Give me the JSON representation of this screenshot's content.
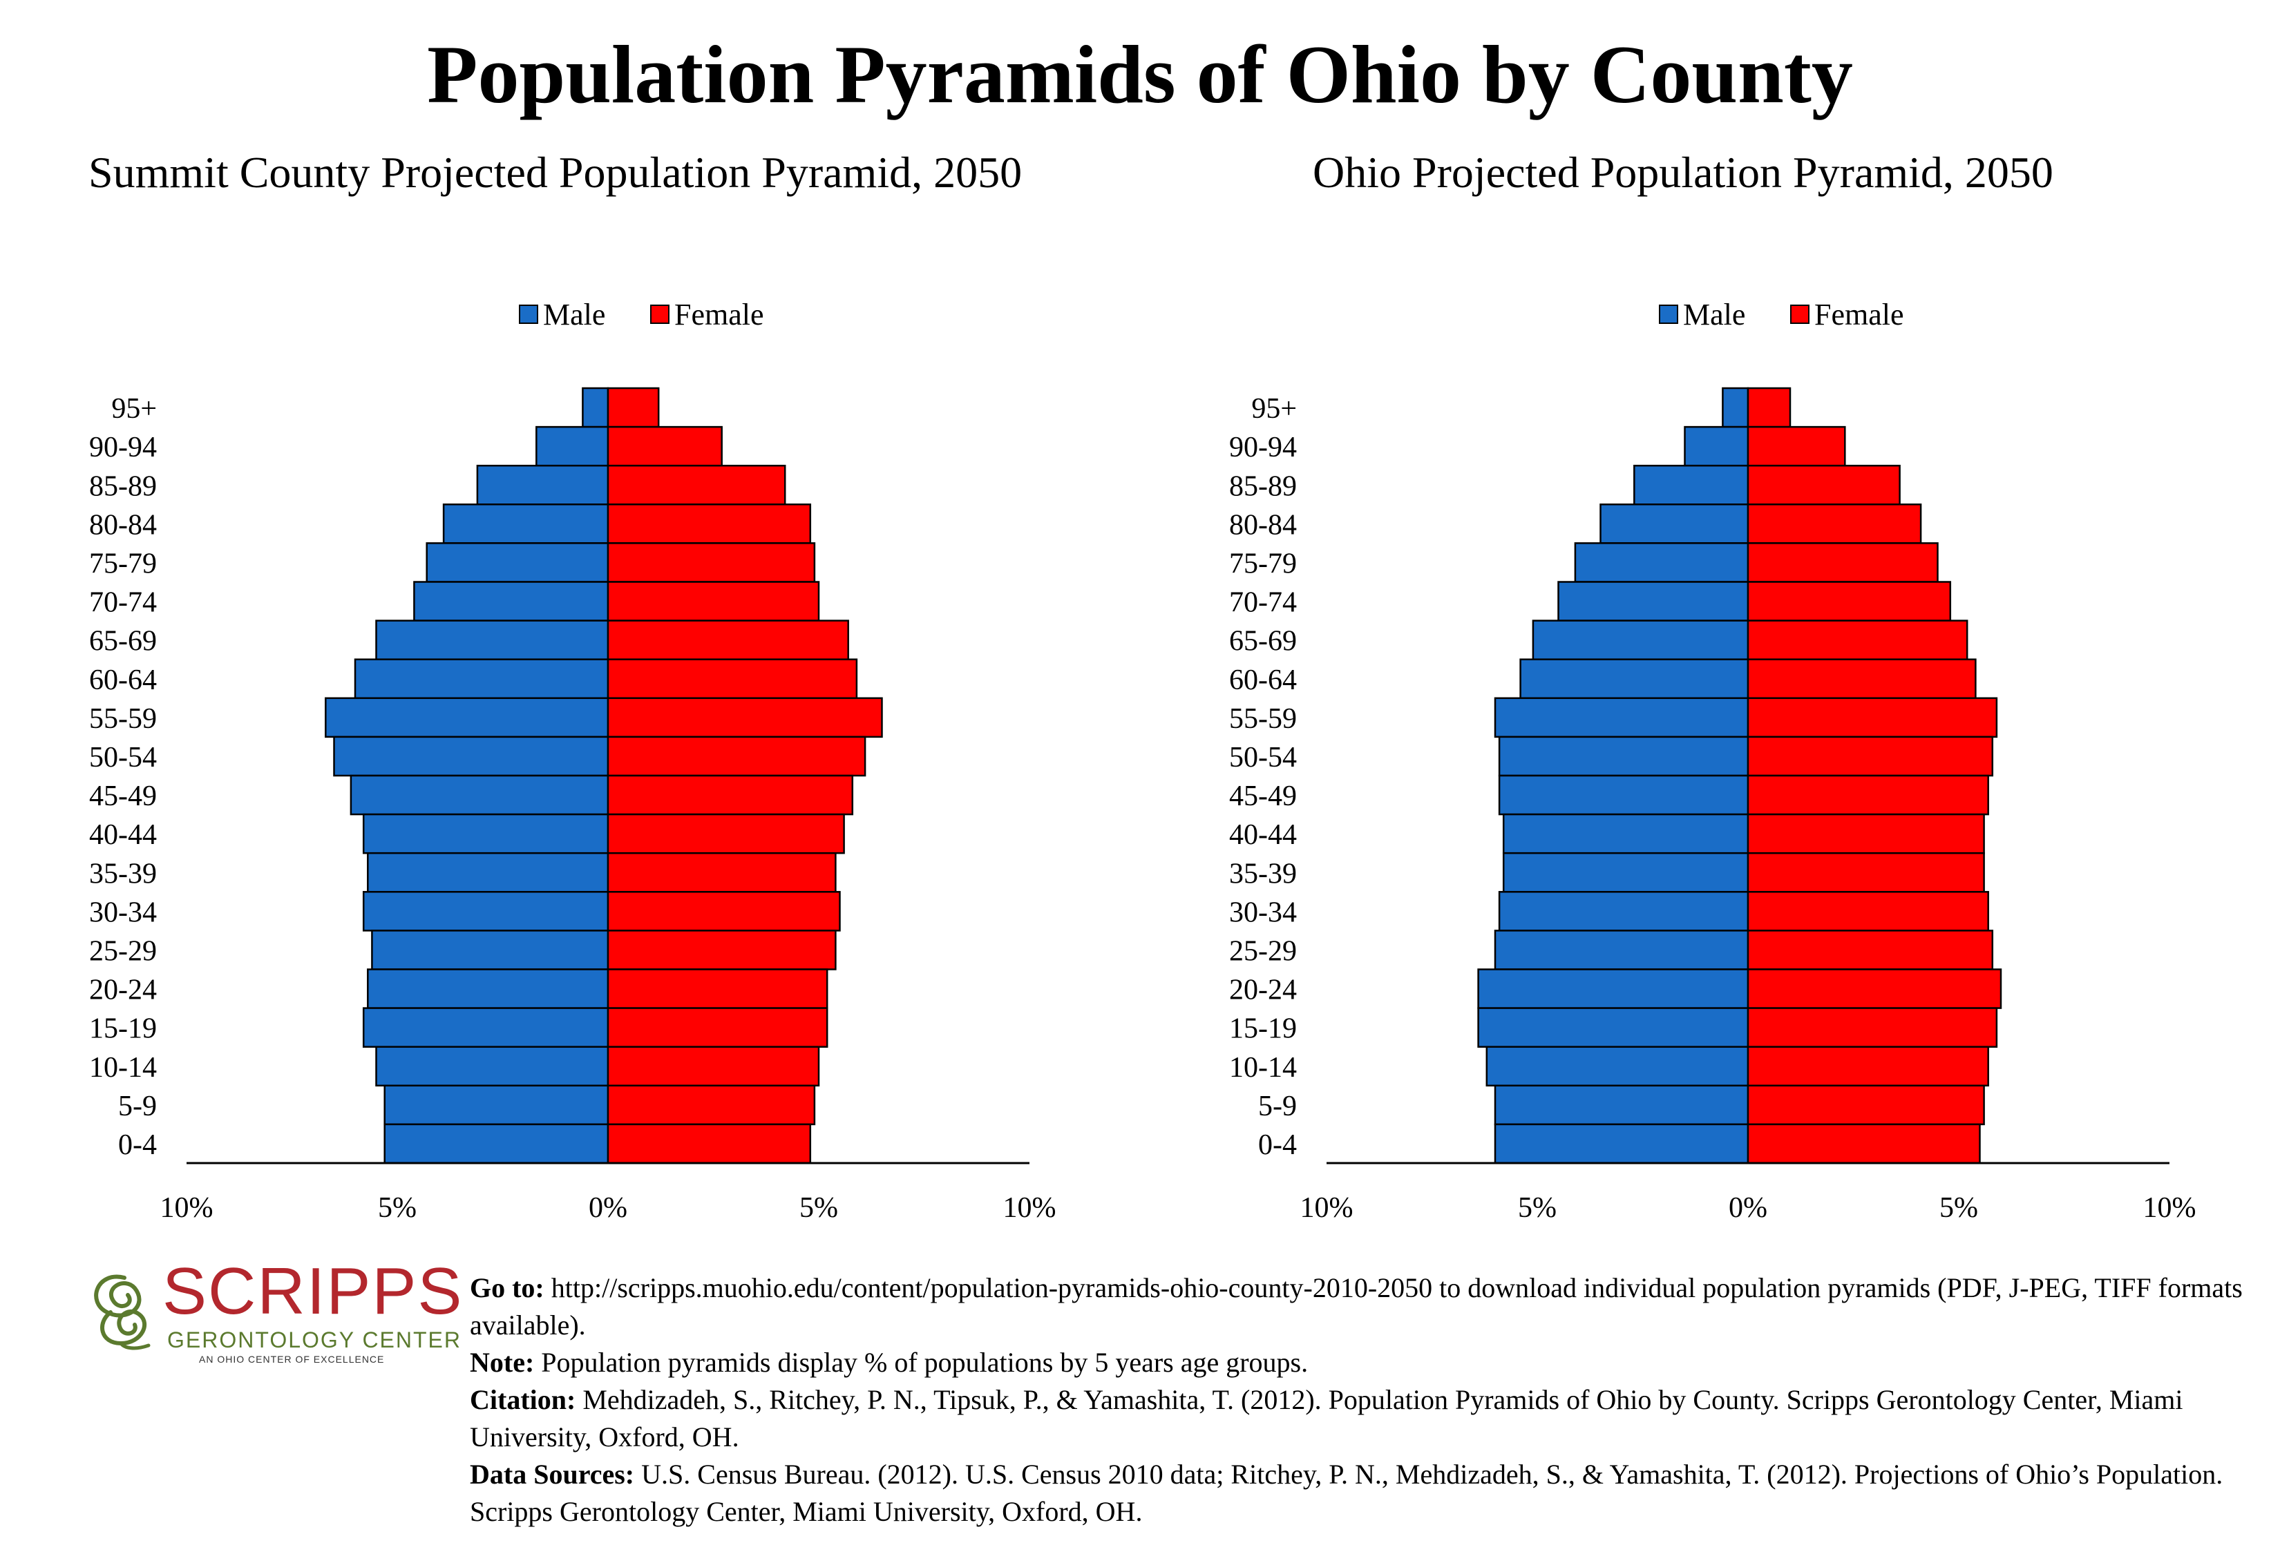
{
  "title": "Population Pyramids of Ohio by County",
  "legend": {
    "male": "Male",
    "female": "Female"
  },
  "colors": {
    "male": "#1a6dc7",
    "female": "#ff0000",
    "logo_red": "#b3272d",
    "logo_green": "#5b7a2e"
  },
  "chart_data": [
    {
      "type": "bar",
      "orientation": "horizontal-pyramid",
      "title": "Summit County Projected Population Pyramid, 2050",
      "categories": [
        "95+",
        "90-94",
        "85-89",
        "80-84",
        "75-79",
        "70-74",
        "65-69",
        "60-64",
        "55-59",
        "50-54",
        "45-49",
        "40-44",
        "35-39",
        "30-34",
        "25-29",
        "20-24",
        "15-19",
        "10-14",
        "5-9",
        "0-4"
      ],
      "series": [
        {
          "name": "Male",
          "values": [
            0.6,
            1.7,
            3.1,
            3.9,
            4.3,
            4.6,
            5.5,
            6.0,
            6.7,
            6.5,
            6.1,
            5.8,
            5.7,
            5.8,
            5.6,
            5.7,
            5.8,
            5.5,
            5.3,
            5.3
          ]
        },
        {
          "name": "Female",
          "values": [
            1.2,
            2.7,
            4.2,
            4.8,
            4.9,
            5.0,
            5.7,
            5.9,
            6.5,
            6.1,
            5.8,
            5.6,
            5.4,
            5.5,
            5.4,
            5.2,
            5.2,
            5.0,
            4.9,
            4.8
          ]
        }
      ],
      "xticks": [
        "10%",
        "5%",
        "0%",
        "5%",
        "10%"
      ],
      "xlim": [
        -10,
        10
      ],
      "legend_position": "top-center"
    },
    {
      "type": "bar",
      "orientation": "horizontal-pyramid",
      "title": "Ohio Projected Population Pyramid, 2050",
      "categories": [
        "95+",
        "90-94",
        "85-89",
        "80-84",
        "75-79",
        "70-74",
        "65-69",
        "60-64",
        "55-59",
        "50-54",
        "45-49",
        "40-44",
        "35-39",
        "30-34",
        "25-29",
        "20-24",
        "15-19",
        "10-14",
        "5-9",
        "0-4"
      ],
      "series": [
        {
          "name": "Male",
          "values": [
            0.6,
            1.5,
            2.7,
            3.5,
            4.1,
            4.5,
            5.1,
            5.4,
            6.0,
            5.9,
            5.9,
            5.8,
            5.8,
            5.9,
            6.0,
            6.4,
            6.4,
            6.2,
            6.0,
            6.0
          ]
        },
        {
          "name": "Female",
          "values": [
            1.0,
            2.3,
            3.6,
            4.1,
            4.5,
            4.8,
            5.2,
            5.4,
            5.9,
            5.8,
            5.7,
            5.6,
            5.6,
            5.7,
            5.8,
            6.0,
            5.9,
            5.7,
            5.6,
            5.5
          ]
        }
      ],
      "xticks": [
        "10%",
        "5%",
        "0%",
        "5%",
        "10%"
      ],
      "xlim": [
        -10,
        10
      ],
      "legend_position": "top-center"
    }
  ],
  "logo": {
    "word": "SCRIPPS",
    "subtitle": "GERONTOLOGY CENTER",
    "tagline": "AN OHIO CENTER OF EXCELLENCE"
  },
  "footer": {
    "goto_label": "Go to:",
    "goto_text": " http://scripps.muohio.edu/content/population-pyramids-ohio-county-2010-2050 to download individual population pyramids (PDF, J-PEG, TIFF formats available).",
    "note_label": "Note:",
    "note_text": " Population pyramids display % of populations by 5 years age groups.",
    "citation_label": "Citation:",
    "citation_text": " Mehdizadeh, S., Ritchey, P. N., Tipsuk, P., & Yamashita, T. (2012). Population Pyramids of Ohio by County. Scripps Gerontology Center, Miami University, Oxford, OH.",
    "sources_label": "Data Sources:",
    "sources_text": " U.S. Census Bureau. (2012). U.S. Census 2010 data; Ritchey, P. N., Mehdizadeh, S., & Yamashita, T. (2012). Projections of Ohio’s Population. Scripps Gerontology Center, Miami University, Oxford, OH."
  }
}
